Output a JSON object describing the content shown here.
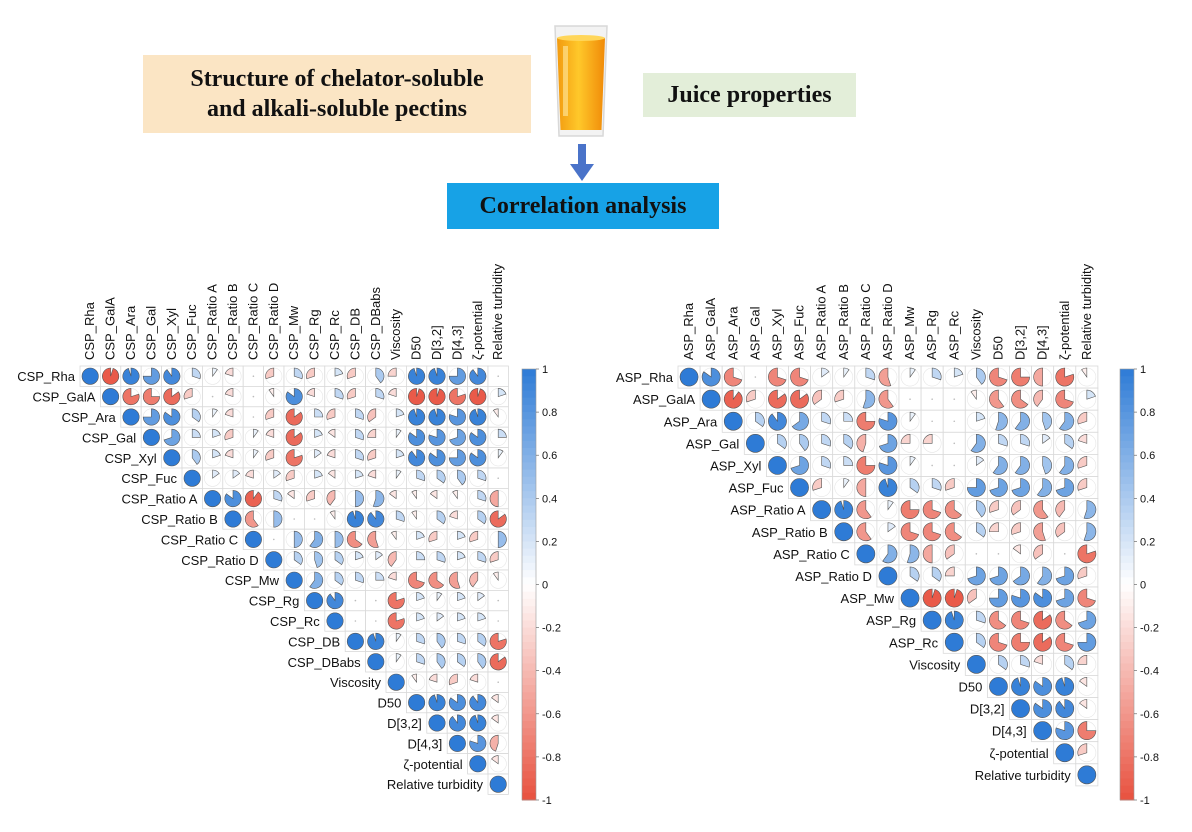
{
  "header": {
    "structure_box": [
      "Structure of chelator-soluble",
      "and alkali-soluble pectins"
    ],
    "juice_box": "Juice properties",
    "correlation_box": "Correlation analysis"
  },
  "icons": {
    "glass": "juice-glass-icon",
    "arrow": "down-arrow-icon"
  },
  "colors": {
    "positive": "#2e7bd6",
    "negative": "#e8513f",
    "box_structure": "#fbe5c4",
    "box_juice": "#e3eed9",
    "box_corr": "#17a2e6"
  },
  "chart_data": [
    {
      "type": "heatmap",
      "variables": [
        "CSP_Rha",
        "CSP_GalA",
        "CSP_Ara",
        "CSP_Gal",
        "CSP_Xyl",
        "CSP_Fuc",
        "CSP_Ratio A",
        "CSP_Ratio B",
        "CSP_Ratio C",
        "CSP_Ratio D",
        "CSP_Mw",
        "CSP_Rg",
        "CSP_Rc",
        "CSP_DB",
        "CSP_DBabs",
        "Viscosity",
        "D50",
        "D[3,2]",
        "D[4,3]",
        "ζ-potential",
        "Relative turbidity"
      ],
      "matrix_shape": "upper-triangle",
      "colorbar": {
        "range": [
          -1,
          1
        ],
        "ticks": [
          "1",
          "0.8",
          "0.6",
          "0.4",
          "0.2",
          "0",
          "-0.2",
          "-0.4",
          "-0.6",
          "-0.8",
          "-1"
        ]
      },
      "rows": [
        [
          1,
          -0.95,
          0.95,
          0.75,
          0.9,
          0.3,
          0.1,
          -0.2,
          0.05,
          -0.3,
          0.3,
          -0.3,
          0.2,
          -0.3,
          0.4,
          -0.25,
          0.95,
          0.95,
          0.75,
          0.9,
          -0.05
        ],
        [
          1,
          -0.8,
          -0.75,
          -0.85,
          -0.3,
          0.05,
          -0.2,
          0.05,
          -0.1,
          0.85,
          -0.2,
          0.3,
          -0.3,
          0.3,
          -0.2,
          -0.95,
          -0.95,
          -0.8,
          -0.95,
          0.2
        ],
        [
          1,
          0.75,
          0.85,
          0.35,
          0.1,
          -0.2,
          0.05,
          -0.3,
          -0.85,
          0.25,
          -0.3,
          0.3,
          -0.35,
          0.2,
          0.95,
          0.95,
          0.8,
          0.95,
          -0.1
        ],
        [
          1,
          0.7,
          0.25,
          0.2,
          -0.3,
          0.1,
          -0.2,
          -0.85,
          0.2,
          -0.15,
          0.3,
          -0.25,
          0.1,
          0.85,
          0.8,
          0.7,
          0.85,
          0.25
        ],
        [
          1,
          0.4,
          0.2,
          -0.2,
          0.1,
          -0.3,
          -0.8,
          0.15,
          -0.2,
          0.3,
          -0.3,
          0.2,
          0.9,
          0.85,
          0.75,
          0.85,
          0.1
        ],
        [
          1,
          0.15,
          0.15,
          -0.2,
          0.15,
          -0.3,
          0.2,
          -0.15,
          0.2,
          -0.2,
          0.1,
          0.3,
          0.35,
          0.4,
          0.3,
          -0.05
        ],
        [
          1,
          0.85,
          -0.9,
          0.3,
          -0.15,
          -0.3,
          -0.4,
          0.5,
          0.55,
          -0.15,
          -0.1,
          -0.15,
          -0.1,
          0.3,
          -0.5
        ],
        [
          1,
          -0.6,
          0.5,
          -0.05,
          -0.05,
          -0.1,
          0.95,
          0.9,
          0.3,
          -0.1,
          0.35,
          -0.2,
          0.35,
          -0.85
        ],
        [
          1,
          0.05,
          0.5,
          0.6,
          0.5,
          -0.65,
          -0.55,
          -0.1,
          0.2,
          -0.3,
          0.2,
          -0.3,
          0.5
        ],
        [
          1,
          0.35,
          0.45,
          0.35,
          0.2,
          0.15,
          -0.4,
          0.25,
          0.3,
          0.2,
          0.3,
          -0.3
        ],
        [
          1,
          0.6,
          0.35,
          0.3,
          0.25,
          -0.2,
          -0.7,
          -0.65,
          -0.55,
          -0.4,
          -0.1
        ],
        [
          1,
          0.9,
          0.05,
          -0.05,
          -0.8,
          0.2,
          0.1,
          0.2,
          0.15,
          0.05
        ],
        [
          1,
          -0.05,
          -0.05,
          -0.8,
          0.2,
          0.15,
          0.2,
          0.2,
          -0.05
        ],
        [
          1,
          0.95,
          0.1,
          0.3,
          0.4,
          0.3,
          0.35,
          -0.8
        ],
        [
          1,
          0.1,
          0.3,
          0.4,
          0.35,
          0.4,
          -0.85
        ],
        [
          1,
          -0.1,
          -0.2,
          -0.3,
          -0.2,
          0.05
        ],
        [
          1,
          0.95,
          0.85,
          0.9,
          -0.15
        ],
        [
          1,
          0.9,
          0.95,
          -0.15
        ],
        [
          1,
          0.8,
          -0.45
        ],
        [
          1,
          -0.15
        ],
        [
          1
        ]
      ]
    },
    {
      "type": "heatmap",
      "variables": [
        "ASP_Rha",
        "ASP_GalA",
        "ASP_Ara",
        "ASP_Gal",
        "ASP_Xyl",
        "ASP_Fuc",
        "ASP_Ratio A",
        "ASP_Ratio B",
        "ASP_Ratio C",
        "ASP_Ratio D",
        "ASP_Mw",
        "ASP_Rg",
        "ASP_Rc",
        "Viscosity",
        "D50",
        "D[3,2]",
        "D[4,3]",
        "ζ-potential",
        "Relative turbidity"
      ],
      "matrix_shape": "upper-triangle",
      "colorbar": {
        "range": [
          -1,
          1
        ],
        "ticks": [
          "1",
          "0.8",
          "0.6",
          "0.4",
          "0.2",
          "0",
          "-0.2",
          "-0.4",
          "-0.6",
          "-0.8",
          "-1"
        ]
      },
      "rows": [
        [
          1,
          0.85,
          -0.7,
          0.05,
          -0.7,
          -0.7,
          0.15,
          0.1,
          0.3,
          -0.55,
          0.1,
          0.3,
          0.2,
          0.4,
          -0.7,
          -0.75,
          -0.5,
          -0.8,
          -0.1
        ],
        [
          1,
          -0.9,
          -0.3,
          -0.85,
          -0.85,
          -0.35,
          -0.3,
          0.55,
          -0.6,
          0.05,
          0.05,
          0.05,
          -0.1,
          -0.6,
          -0.65,
          -0.4,
          -0.7,
          0.2
        ],
        [
          1,
          0.35,
          0.9,
          0.65,
          0.3,
          0.25,
          -0.75,
          0.8,
          0.1,
          0.05,
          0.05,
          0.2,
          0.55,
          0.6,
          0.45,
          0.6,
          -0.3
        ],
        [
          1,
          0.35,
          0.4,
          0.3,
          0.35,
          -0.45,
          0.7,
          -0.25,
          -0.25,
          0.05,
          0.6,
          0.3,
          0.3,
          0.15,
          0.35,
          -0.2
        ],
        [
          1,
          0.7,
          0.3,
          0.25,
          -0.75,
          0.8,
          0.1,
          0.05,
          0.05,
          0.15,
          0.6,
          0.6,
          0.45,
          0.6,
          -0.3
        ],
        [
          1,
          -0.3,
          0.1,
          -0.5,
          0.95,
          0.35,
          0.3,
          -0.3,
          0.75,
          0.7,
          0.7,
          0.6,
          0.7,
          -0.3
        ],
        [
          1,
          0.95,
          -0.6,
          0.1,
          -0.75,
          -0.7,
          -0.65,
          0.4,
          -0.3,
          -0.35,
          -0.6,
          -0.4,
          0.55
        ],
        [
          1,
          -0.6,
          0.15,
          -0.7,
          -0.7,
          -0.65,
          0.35,
          -0.25,
          -0.3,
          -0.55,
          -0.35,
          0.55
        ],
        [
          1,
          0.6,
          0.55,
          -0.5,
          -0.35,
          0.05,
          -0.05,
          -0.15,
          -0.35,
          -0.05,
          -0.8
        ],
        [
          1,
          0.35,
          0.35,
          -0.25,
          0.7,
          0.7,
          0.65,
          0.6,
          0.7,
          -0.3
        ],
        [
          1,
          -0.95,
          -0.95,
          -0.35,
          0.75,
          0.8,
          0.85,
          0.7,
          -0.7
        ],
        [
          1,
          0.95,
          0.3,
          -0.65,
          -0.7,
          -0.85,
          -0.65,
          0.7
        ],
        [
          1,
          0.35,
          -0.7,
          -0.75,
          -0.85,
          -0.7,
          0.75
        ],
        [
          1,
          0.35,
          0.3,
          -0.2,
          0.35,
          -0.25
        ],
        [
          1,
          0.95,
          0.85,
          0.95,
          -0.15
        ],
        [
          1,
          0.85,
          0.9,
          -0.15
        ],
        [
          1,
          0.8,
          -0.75
        ],
        [
          1,
          -0.3
        ],
        [
          1
        ]
      ]
    }
  ]
}
